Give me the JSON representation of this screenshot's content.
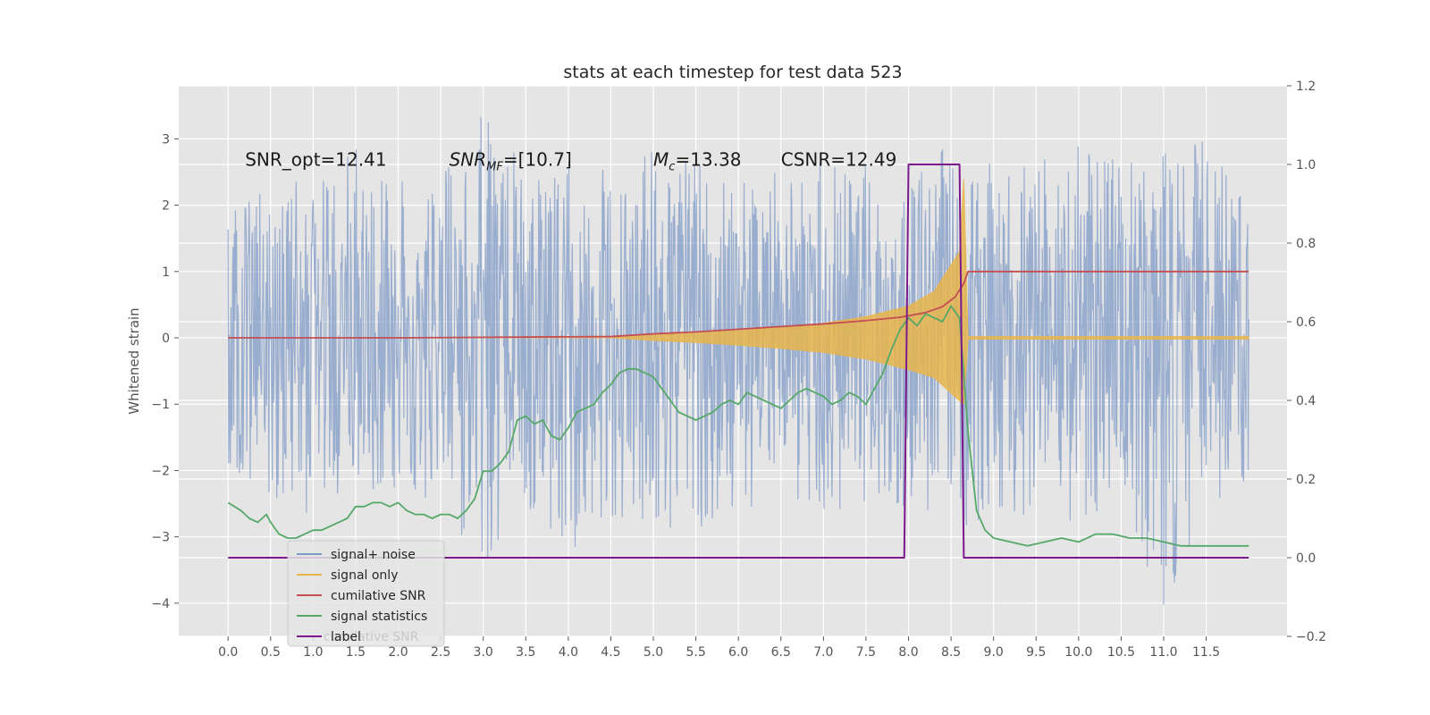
{
  "chart_data": {
    "type": "line",
    "title": "stats at each timestep for test data 523",
    "ylabel": "Whitened strain",
    "ylim_left": [
      -4.5,
      3.8
    ],
    "ylim_right": [
      -0.2,
      1.2
    ],
    "xlim": [
      -0.58,
      12.45
    ],
    "x_ticks": [
      "0.0",
      "0.5",
      "1.0",
      "1.5",
      "2.0",
      "2.5",
      "3.0",
      "3.5",
      "4.0",
      "4.5",
      "5.0",
      "5.5",
      "6.0",
      "6.5",
      "7.0",
      "7.5",
      "8.0",
      "8.5",
      "9.0",
      "9.5",
      "10.0",
      "10.5",
      "11.0",
      "11.5"
    ],
    "y_ticks_left": [
      "3",
      "2",
      "1",
      "0",
      "−1",
      "−2",
      "−3",
      "−4"
    ],
    "y_ticks_right": [
      "1.2",
      "1.0",
      "0.8",
      "0.6",
      "0.4",
      "0.2",
      "0.0",
      "−0.2"
    ],
    "grid": true,
    "legend_placement": "lower-left",
    "annotations": [
      {
        "text": "SNR_opt=12.41",
        "x": 0.2,
        "y": 2.7
      },
      {
        "html": "<tspan font-style='italic'>SNR</tspan><tspan font-style='italic' font-size='13' dy='5'>MF</tspan><tspan dy='-5'>=[10.7]</tspan>",
        "plain": "SNR_MF=[10.7]",
        "x": 2.6,
        "y": 2.7
      },
      {
        "html": "<tspan font-style='italic'>M</tspan><tspan font-style='italic' font-size='13' dy='5'>c</tspan><tspan dy='-5'>=13.38</tspan>",
        "plain": "M_c=13.38",
        "x": 5.0,
        "y": 2.7
      },
      {
        "text": "CSNR=12.49",
        "x": 6.5,
        "y": 2.7
      }
    ],
    "series": [
      {
        "name": "signal+ noise",
        "axis": "left",
        "color": "#7f9ac7",
        "x_start": 0.0,
        "x_end": 12.0,
        "band_envelope": {
          "x": [
            0.0,
            0.5,
            1.0,
            1.5,
            2.0,
            2.5,
            3.0,
            3.5,
            4.0,
            4.5,
            5.0,
            5.5,
            6.0,
            6.5,
            7.0,
            7.5,
            8.0,
            8.5,
            9.0,
            9.5,
            10.0,
            10.5,
            11.0,
            11.5,
            12.0
          ],
          "upper": [
            1.8,
            2.5,
            2.3,
            2.9,
            2.5,
            2.4,
            3.5,
            2.6,
            2.7,
            2.5,
            2.9,
            2.8,
            2.5,
            2.6,
            2.8,
            2.6,
            2.5,
            3.0,
            2.6,
            2.8,
            3.1,
            2.7,
            2.8,
            3.1,
            2.2
          ],
          "lower": [
            -2.0,
            -2.6,
            -2.7,
            -2.5,
            -2.5,
            -2.6,
            -3.4,
            -2.6,
            -3.3,
            -2.7,
            -2.8,
            -3.3,
            -2.6,
            -2.8,
            -2.6,
            -2.6,
            -2.7,
            -3.0,
            -2.7,
            -2.8,
            -2.8,
            -2.5,
            -4.1,
            -2.7,
            -2.1
          ]
        }
      },
      {
        "name": "signal only",
        "axis": "left",
        "color": "#e8b54c",
        "x": [
          0.0,
          4.5,
          5.0,
          5.5,
          6.0,
          6.5,
          7.0,
          7.5,
          8.0,
          8.3,
          8.6,
          8.65,
          8.7,
          12.0
        ],
        "upper": [
          0.0,
          0.0,
          0.04,
          0.07,
          0.11,
          0.16,
          0.22,
          0.32,
          0.48,
          0.7,
          1.3,
          2.4,
          0.02,
          0.02
        ],
        "lower": [
          0.0,
          0.0,
          -0.04,
          -0.07,
          -0.11,
          -0.16,
          -0.22,
          -0.32,
          -0.48,
          -0.6,
          -0.95,
          -1.0,
          -0.02,
          -0.02
        ]
      },
      {
        "name": "cumilative SNR",
        "axis": "left",
        "color": "#c44e52",
        "x": [
          0.0,
          2.0,
          4.5,
          5.0,
          5.5,
          6.0,
          6.5,
          7.0,
          7.5,
          7.9,
          8.2,
          8.4,
          8.55,
          8.65,
          8.7,
          12.0
        ],
        "y": [
          0.0,
          0.0,
          0.02,
          0.06,
          0.09,
          0.13,
          0.17,
          0.21,
          0.26,
          0.31,
          0.38,
          0.47,
          0.62,
          0.82,
          1.0,
          1.0
        ]
      },
      {
        "name": "signal statistics",
        "axis": "right",
        "color": "#55a868",
        "x": [
          0.0,
          0.15,
          0.25,
          0.35,
          0.45,
          0.5,
          0.6,
          0.7,
          0.8,
          0.9,
          1.0,
          1.1,
          1.2,
          1.3,
          1.4,
          1.5,
          1.6,
          1.7,
          1.8,
          1.9,
          2.0,
          2.1,
          2.2,
          2.3,
          2.4,
          2.5,
          2.6,
          2.7,
          2.8,
          2.9,
          3.0,
          3.1,
          3.2,
          3.3,
          3.4,
          3.5,
          3.6,
          3.7,
          3.8,
          3.9,
          4.0,
          4.1,
          4.2,
          4.3,
          4.4,
          4.5,
          4.6,
          4.7,
          4.8,
          4.9,
          5.0,
          5.1,
          5.2,
          5.3,
          5.4,
          5.5,
          5.6,
          5.7,
          5.8,
          5.9,
          6.0,
          6.1,
          6.2,
          6.3,
          6.4,
          6.5,
          6.6,
          6.7,
          6.8,
          6.9,
          7.0,
          7.1,
          7.2,
          7.3,
          7.4,
          7.5,
          7.6,
          7.7,
          7.8,
          7.9,
          8.0,
          8.1,
          8.2,
          8.3,
          8.4,
          8.5,
          8.6,
          8.7,
          8.8,
          8.9,
          9.0,
          9.2,
          9.4,
          9.6,
          9.8,
          10.0,
          10.2,
          10.4,
          10.6,
          10.8,
          11.0,
          11.2,
          11.4,
          11.6,
          11.8,
          12.0
        ],
        "y": [
          0.14,
          0.12,
          0.1,
          0.09,
          0.11,
          0.09,
          0.06,
          0.05,
          0.05,
          0.06,
          0.07,
          0.07,
          0.08,
          0.09,
          0.1,
          0.13,
          0.13,
          0.14,
          0.14,
          0.13,
          0.14,
          0.12,
          0.11,
          0.11,
          0.1,
          0.11,
          0.11,
          0.1,
          0.12,
          0.15,
          0.22,
          0.22,
          0.24,
          0.27,
          0.35,
          0.36,
          0.34,
          0.35,
          0.31,
          0.3,
          0.33,
          0.37,
          0.38,
          0.39,
          0.42,
          0.44,
          0.47,
          0.48,
          0.48,
          0.47,
          0.46,
          0.43,
          0.4,
          0.37,
          0.36,
          0.35,
          0.36,
          0.37,
          0.39,
          0.4,
          0.39,
          0.42,
          0.41,
          0.4,
          0.39,
          0.38,
          0.4,
          0.42,
          0.43,
          0.42,
          0.41,
          0.39,
          0.4,
          0.42,
          0.41,
          0.39,
          0.43,
          0.47,
          0.53,
          0.58,
          0.61,
          0.59,
          0.62,
          0.61,
          0.6,
          0.64,
          0.61,
          0.32,
          0.12,
          0.07,
          0.05,
          0.04,
          0.03,
          0.04,
          0.05,
          0.04,
          0.06,
          0.06,
          0.05,
          0.05,
          0.04,
          0.03,
          0.03,
          0.03,
          0.03,
          0.03
        ]
      },
      {
        "name": "label",
        "axis": "right",
        "color": "#7b1a8a",
        "x": [
          0.0,
          7.95,
          8.0,
          8.6,
          8.65,
          12.0
        ],
        "y": [
          0.0,
          0.0,
          1.0,
          1.0,
          0.0,
          0.0
        ]
      }
    ],
    "legend_overlap_text": "cumilative SNR"
  }
}
